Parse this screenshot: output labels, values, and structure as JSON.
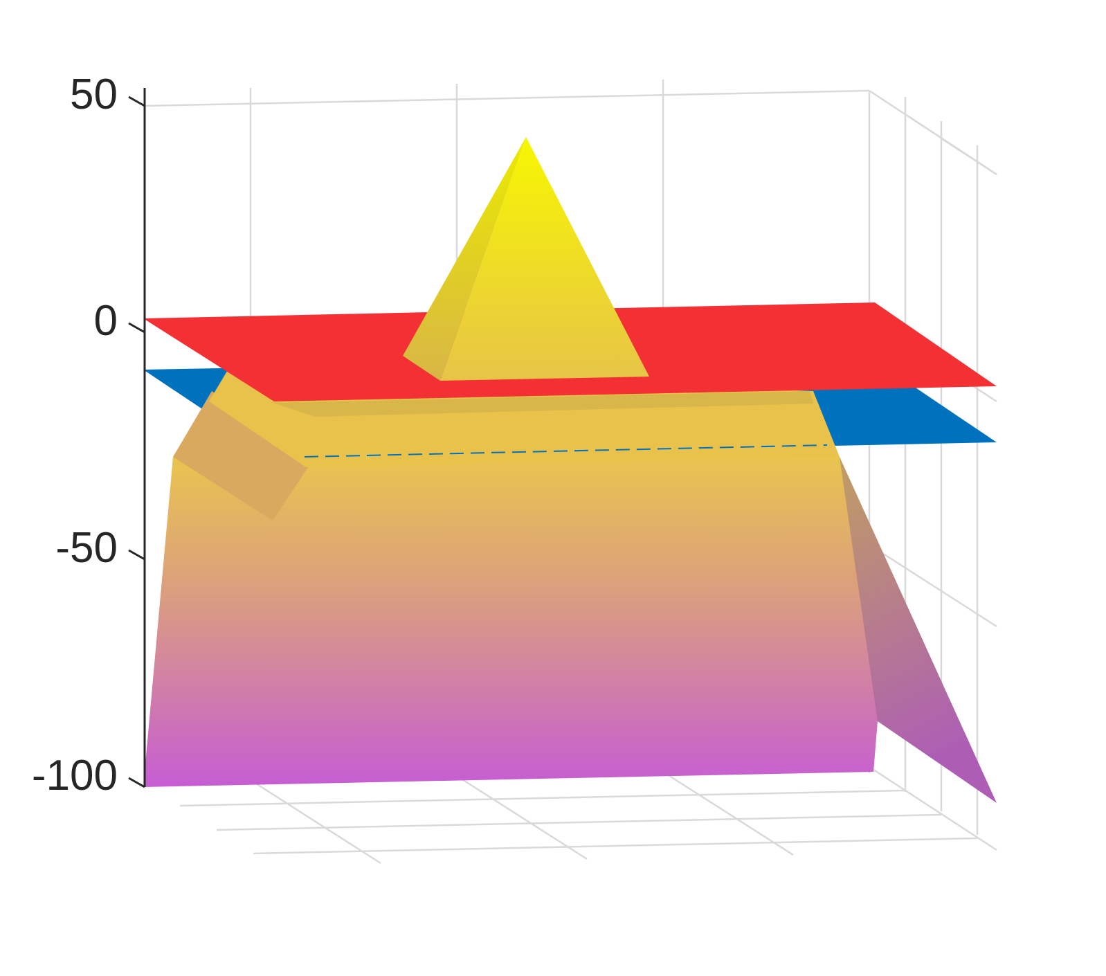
{
  "chart_data": {
    "type": "surface",
    "title": "",
    "xlabel": "",
    "ylabel": "",
    "zlabel": "",
    "zlim": [
      -100,
      50
    ],
    "zticks": [
      50,
      0,
      -50,
      -100
    ],
    "grid": true,
    "surfaces": [
      {
        "name": "",
        "kind": "plane",
        "z": 0,
        "color": "#f33033"
      },
      {
        "name": "",
        "kind": "plane",
        "z": -12,
        "color": "#0072bd"
      },
      {
        "name": "",
        "kind": "terrain",
        "peak_z": 40,
        "plateau_z": -20,
        "base_z": -100,
        "colormap": [
          "#f5f200",
          "#e5c24a",
          "#dca277",
          "#cf74b8",
          "#c45ed0"
        ]
      }
    ]
  },
  "colors": {
    "upper_plane": "#f33033",
    "lower_plane": "#0072bd",
    "grid": "#d9d9d9",
    "axis": "#262626"
  }
}
